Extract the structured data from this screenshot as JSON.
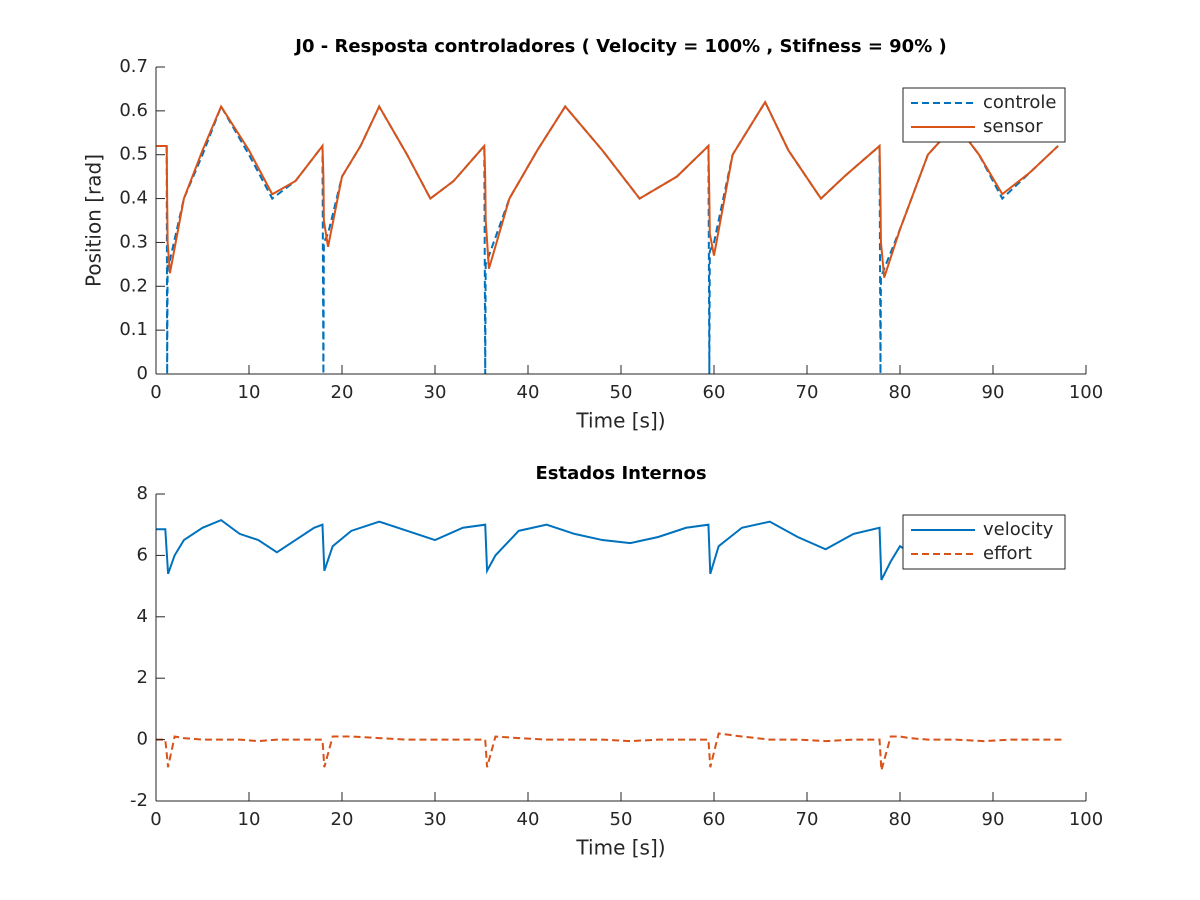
{
  "chart_data": [
    {
      "type": "line",
      "title": "J0 - Resposta controladores ( Velocity = 100% , Stifness = 90% )",
      "x_label": "Time [s])",
      "y_label": "Position [rad]",
      "x": [
        0,
        1.15,
        1.2,
        1.25,
        1.5,
        3,
        5,
        7,
        10,
        12.5,
        15,
        17.9,
        18,
        18.05,
        18.5,
        20,
        22,
        24,
        27,
        29.5,
        32,
        35.3,
        35.4,
        35.45,
        35.8,
        38,
        41,
        44,
        48,
        52,
        56,
        59.4,
        59.5,
        59.55,
        60,
        62,
        65.5,
        68,
        71.5,
        74,
        77.8,
        77.9,
        77.95,
        78.3,
        80,
        83,
        86,
        88.5,
        91,
        94,
        97
      ],
      "series": [
        {
          "name": "controle",
          "color": "#0072bd",
          "style": "dashed",
          "values": [
            0.52,
            0.52,
            0,
            0.25,
            0.26,
            0.4,
            0.5,
            0.61,
            0.5,
            0.4,
            0.44,
            0.52,
            0,
            0.3,
            0.32,
            0.45,
            0.52,
            0.61,
            0.5,
            0.4,
            0.44,
            0.52,
            0,
            0.25,
            0.27,
            0.4,
            0.51,
            0.61,
            0.51,
            0.4,
            0.45,
            0.52,
            0,
            0.28,
            0.3,
            0.5,
            0.62,
            0.51,
            0.4,
            0.45,
            0.52,
            0,
            0.22,
            0.24,
            0.33,
            0.5,
            0.57,
            0.5,
            0.4,
            0.46,
            0.52
          ]
        },
        {
          "name": "sensor",
          "color": "#d95319",
          "style": "solid",
          "values": [
            0.52,
            0.52,
            0.4,
            0.3,
            0.23,
            0.4,
            0.51,
            0.61,
            0.51,
            0.41,
            0.44,
            0.52,
            0.45,
            0.35,
            0.29,
            0.45,
            0.52,
            0.61,
            0.5,
            0.4,
            0.44,
            0.52,
            0.45,
            0.35,
            0.24,
            0.4,
            0.51,
            0.61,
            0.51,
            0.4,
            0.45,
            0.52,
            0.4,
            0.32,
            0.27,
            0.5,
            0.62,
            0.51,
            0.4,
            0.45,
            0.52,
            0.4,
            0.3,
            0.22,
            0.33,
            0.5,
            0.57,
            0.5,
            0.41,
            0.46,
            0.52
          ]
        }
      ],
      "xlim": [
        0,
        100
      ],
      "xticks": [
        0,
        10,
        20,
        30,
        40,
        50,
        60,
        70,
        80,
        90,
        100
      ],
      "ylim": [
        0,
        0.7
      ],
      "yticks": [
        0,
        0.1,
        0.2,
        0.3,
        0.4,
        0.5,
        0.6,
        0.7
      ],
      "legend": "northeast"
    },
    {
      "type": "line",
      "title": "Estados Internos",
      "x_label": "Time [s])",
      "x": [
        0,
        1,
        1.3,
        2,
        3,
        5,
        7,
        9,
        11,
        13,
        15,
        17,
        17.9,
        18.1,
        19,
        21,
        24,
        27,
        30,
        33,
        35.4,
        35.6,
        36.5,
        39,
        42,
        45,
        48,
        51,
        54,
        57,
        59.4,
        59.6,
        60.5,
        63,
        66,
        69,
        72,
        75,
        77.8,
        78,
        79,
        80,
        81,
        83,
        86,
        89,
        92,
        95,
        97.5
      ],
      "series": [
        {
          "name": "velocity",
          "color": "#0072bd",
          "style": "solid",
          "values": [
            6.85,
            6.85,
            5.4,
            6.0,
            6.5,
            6.9,
            7.15,
            6.7,
            6.5,
            6.1,
            6.5,
            6.9,
            7.0,
            5.5,
            6.3,
            6.8,
            7.1,
            6.8,
            6.5,
            6.9,
            7.0,
            5.5,
            6.0,
            6.8,
            7.0,
            6.7,
            6.5,
            6.4,
            6.6,
            6.9,
            7.0,
            5.4,
            6.3,
            6.9,
            7.1,
            6.6,
            6.2,
            6.7,
            6.9,
            5.2,
            5.8,
            6.3,
            6.1,
            null,
            null,
            null,
            null,
            null,
            null
          ]
        },
        {
          "name": "effort",
          "color": "#d95319",
          "style": "dashed",
          "values": [
            0,
            0,
            -0.9,
            0.1,
            0.05,
            0,
            0,
            0,
            -0.05,
            0,
            0,
            0,
            0,
            -0.9,
            0.1,
            0.1,
            0.05,
            0,
            0,
            0,
            0,
            -0.9,
            0.1,
            0.05,
            0,
            0,
            0,
            -0.05,
            0,
            0,
            0,
            -0.9,
            0.2,
            0.1,
            0,
            0,
            -0.05,
            0,
            0,
            -1.0,
            0.1,
            0.1,
            0.05,
            0,
            0,
            -0.05,
            0,
            0,
            0
          ]
        }
      ],
      "xlim": [
        0,
        100
      ],
      "xticks": [
        0,
        10,
        20,
        30,
        40,
        50,
        60,
        70,
        80,
        90,
        100
      ],
      "ylim": [
        -2,
        8
      ],
      "yticks": [
        -2,
        0,
        2,
        4,
        6,
        8
      ],
      "legend": "northeast"
    }
  ]
}
